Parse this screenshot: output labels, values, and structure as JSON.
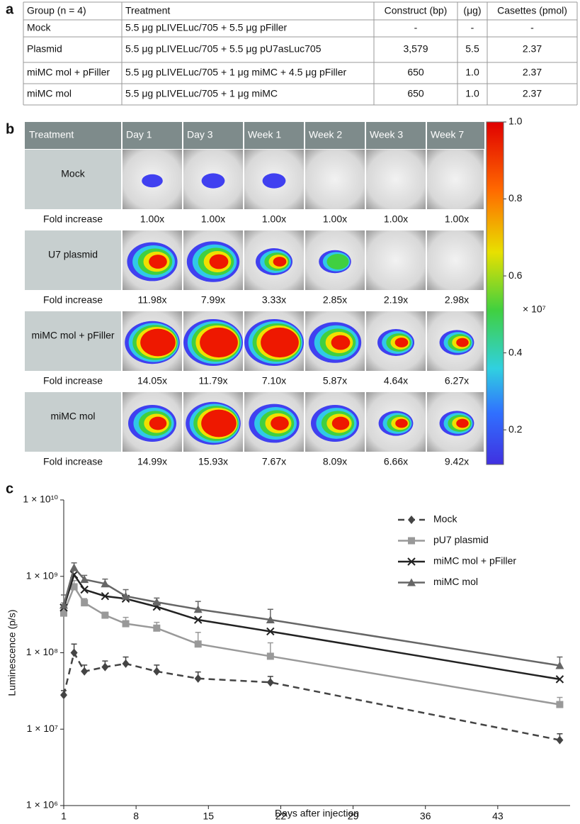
{
  "panel_labels": [
    "a",
    "b",
    "c"
  ],
  "table": {
    "headers": [
      "Group (n = 4)",
      "Treatment",
      "Construct (bp)",
      "(μg)",
      "Casettes (pmol)"
    ],
    "rows": [
      [
        "Mock",
        "5.5 μg pLIVELuc/705 + 5.5 μg pFiller",
        "-",
        "-",
        "-"
      ],
      [
        "Plasmid",
        "5.5 μg pLIVELuc/705 + 5.5 μg pU7asLuc705",
        "3,579",
        "5.5",
        "2.37"
      ],
      [
        "miMC mol + pFiller",
        "5.5 μg pLIVELuc/705 + 1 μg miMC + 4.5 μg pFiller",
        "650",
        "1.0",
        "2.37"
      ],
      [
        "miMC mol",
        "5.5 μg pLIVELuc/705 + 1 μg miMC",
        "650",
        "1.0",
        "2.37"
      ]
    ]
  },
  "imaging": {
    "headers": [
      "Treatment",
      "Day 1",
      "Day 3",
      "Week 1",
      "Week 2",
      "Week 3",
      "Week 7"
    ],
    "rows": [
      {
        "treatment": "Mock",
        "fold_label": "Fold increase",
        "folds": [
          "1.00x",
          "1.00x",
          "1.00x",
          "1.00x",
          "1.00x",
          "1.00x"
        ]
      },
      {
        "treatment": "U7 plasmid",
        "fold_label": "Fold increase",
        "folds": [
          "11.98x",
          "7.99x",
          "3.33x",
          "2.85x",
          "2.19x",
          "2.98x"
        ]
      },
      {
        "treatment": "miMC mol + pFiller",
        "fold_label": "Fold increase",
        "folds": [
          "14.05x",
          "11.79x",
          "7.10x",
          "5.87x",
          "4.64x",
          "6.27x"
        ]
      },
      {
        "treatment": "miMC mol",
        "fold_label": "Fold increase",
        "folds": [
          "14.99x",
          "15.93x",
          "7.67x",
          "8.09x",
          "6.66x",
          "9.42x"
        ]
      }
    ],
    "colorbar": {
      "clim": [
        0.11,
        1.0
      ],
      "ticks": [
        {
          "value": 1,
          "label": "1.0"
        },
        0.8,
        0.6,
        0.4,
        0.2
      ],
      "unit": "× 10⁷"
    }
  },
  "chart_data": {
    "type": "line",
    "xlabel": "Days after injection",
    "ylabel": "Luminescence (p/s)",
    "x": [
      1,
      2,
      3,
      5,
      7,
      10,
      14,
      21,
      49
    ],
    "xlim": [
      1,
      50
    ],
    "xticks": [
      1,
      8,
      15,
      22,
      29,
      36,
      43
    ],
    "ylim": [
      1000000,
      10000000000
    ],
    "log_y": true,
    "yticks": [
      {
        "value": 1000000,
        "label": "1 × 10⁶"
      },
      {
        "value": 10000000,
        "label": "1 × 10⁷"
      },
      {
        "value": 100000000,
        "label": "1 × 10⁸"
      },
      {
        "value": 1000000000,
        "label": "1 × 10⁹"
      },
      {
        "value": 10000000000,
        "label": "1 × 10¹⁰"
      }
    ],
    "legend": "upper right",
    "series": [
      {
        "name": "Mock",
        "color": "#444444",
        "marker": "diamond",
        "dashed": true,
        "values": [
          28000000,
          100000000,
          57000000,
          65000000,
          72000000,
          57000000,
          46000000,
          41000000,
          7200000
        ],
        "errors": [
          4000000,
          30000000,
          12000000,
          13000000,
          16000000,
          12000000,
          10000000,
          8000000,
          1500000
        ]
      },
      {
        "name": "pU7 plasmid",
        "color": "#999999",
        "marker": "square",
        "dashed": false,
        "values": [
          330000000,
          730000000,
          450000000,
          310000000,
          240000000,
          210000000,
          130000000,
          90000000,
          21000000
        ],
        "errors": [
          120000000,
          150000000,
          60000000,
          30000000,
          50000000,
          40000000,
          55000000,
          45000000,
          5000000
        ]
      },
      {
        "name": "miMC mol + pFiller",
        "color": "#222222",
        "marker": "x",
        "dashed": false,
        "values": [
          390000000,
          1050000000,
          670000000,
          550000000,
          510000000,
          400000000,
          270000000,
          190000000,
          45000000
        ]
      },
      {
        "name": "miMC mol",
        "color": "#666666",
        "marker": "triangle",
        "dashed": false,
        "values": [
          420000000,
          1300000000,
          910000000,
          800000000,
          550000000,
          460000000,
          370000000,
          270000000,
          68000000
        ],
        "errors": [
          150000000,
          200000000,
          120000000,
          120000000,
          120000000,
          60000000,
          100000000,
          100000000,
          20000000
        ]
      }
    ]
  }
}
